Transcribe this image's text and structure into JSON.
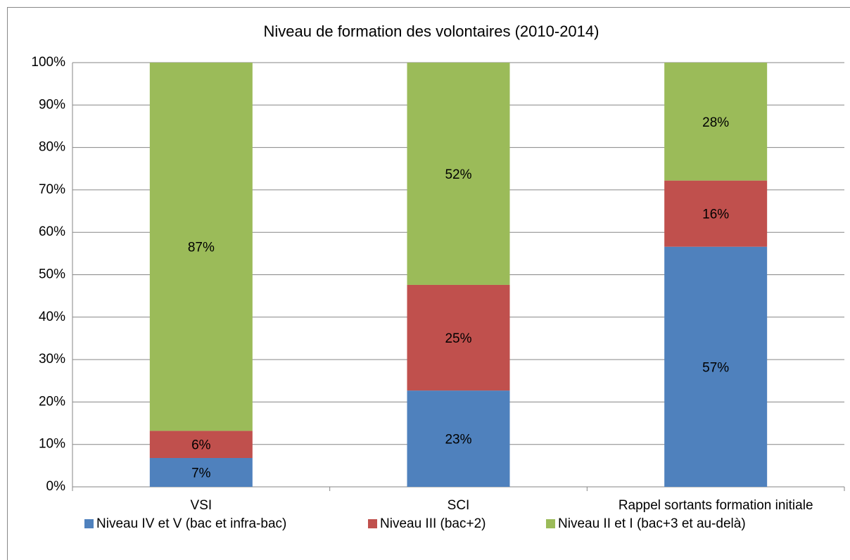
{
  "chart_data": {
    "type": "stacked_bar",
    "title": "Niveau de formation des volontaires (2010-2014)",
    "categories": [
      "VSI",
      "SCI",
      "Rappel sortants formation initiale"
    ],
    "series": [
      {
        "name": "Niveau IV et V (bac et infra-bac)",
        "color": "#4f81bd",
        "values": [
          6.8,
          22.7,
          56.6
        ],
        "value_labels": [
          "7%",
          "23%",
          "57%"
        ]
      },
      {
        "name": "Niveau III (bac+2)",
        "color": "#c0504d",
        "values": [
          6.4,
          24.9,
          15.6
        ],
        "value_labels": [
          "6%",
          "25%",
          "16%"
        ]
      },
      {
        "name": "Niveau II et I (bac+3 et au-delà)",
        "color": "#9bbb59",
        "values": [
          86.8,
          52.4,
          27.8
        ],
        "value_labels": [
          "87%",
          "52%",
          "28%"
        ]
      }
    ],
    "ylim": [
      0,
      100
    ],
    "yticks": [
      {
        "value": 0,
        "label": "0%"
      },
      {
        "value": 10,
        "label": "10%"
      },
      {
        "value": 20,
        "label": "20%"
      },
      {
        "value": 30,
        "label": "30%"
      },
      {
        "value": 40,
        "label": "40%"
      },
      {
        "value": 50,
        "label": "50%"
      },
      {
        "value": 60,
        "label": "60%"
      },
      {
        "value": 70,
        "label": "70%"
      },
      {
        "value": 80,
        "label": "80%"
      },
      {
        "value": 90,
        "label": "90%"
      },
      {
        "value": 100,
        "label": "100%"
      }
    ],
    "grid": true,
    "legend": "bottom"
  }
}
